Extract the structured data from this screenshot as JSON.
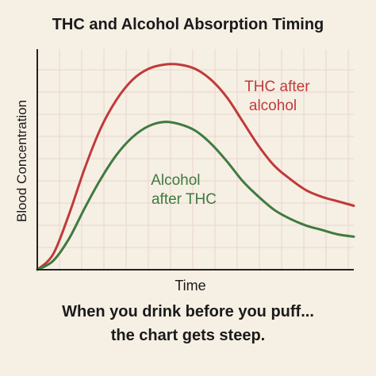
{
  "chart_data": {
    "type": "line",
    "title": "THC and Alcohol Absorption Timing",
    "xlabel": "Time",
    "ylabel": "Blood Concentration",
    "grid": true,
    "legend": "inline labels",
    "series": [
      {
        "name": "THC after alcohol",
        "label_lines": [
          "THC after",
          "alcohol"
        ],
        "color": "#c03a3a",
        "x": [
          0,
          0.05,
          0.1,
          0.15,
          0.2,
          0.25,
          0.3,
          0.35,
          0.4,
          0.45,
          0.5,
          0.55,
          0.6,
          0.65,
          0.7,
          0.75,
          0.8,
          0.85,
          0.9,
          0.95,
          1.0
        ],
        "y": [
          0.0,
          0.07,
          0.25,
          0.46,
          0.64,
          0.77,
          0.86,
          0.91,
          0.93,
          0.93,
          0.91,
          0.86,
          0.78,
          0.67,
          0.56,
          0.47,
          0.41,
          0.36,
          0.33,
          0.31,
          0.29
        ]
      },
      {
        "name": "Alcohol after THC",
        "label_lines": [
          "Alcohol",
          "after THC"
        ],
        "color": "#3f7a3f",
        "x": [
          0,
          0.05,
          0.1,
          0.15,
          0.2,
          0.25,
          0.3,
          0.35,
          0.4,
          0.45,
          0.5,
          0.55,
          0.6,
          0.65,
          0.7,
          0.75,
          0.8,
          0.85,
          0.9,
          0.95,
          1.0
        ],
        "y": [
          0.0,
          0.04,
          0.14,
          0.28,
          0.41,
          0.52,
          0.6,
          0.65,
          0.67,
          0.66,
          0.63,
          0.57,
          0.49,
          0.4,
          0.33,
          0.27,
          0.23,
          0.2,
          0.18,
          0.16,
          0.15
        ]
      }
    ],
    "xlim": [
      0,
      1
    ],
    "ylim": [
      0,
      1
    ]
  },
  "caption": {
    "line1": "When you drink before you puff...",
    "line2": "the chart gets steep."
  }
}
